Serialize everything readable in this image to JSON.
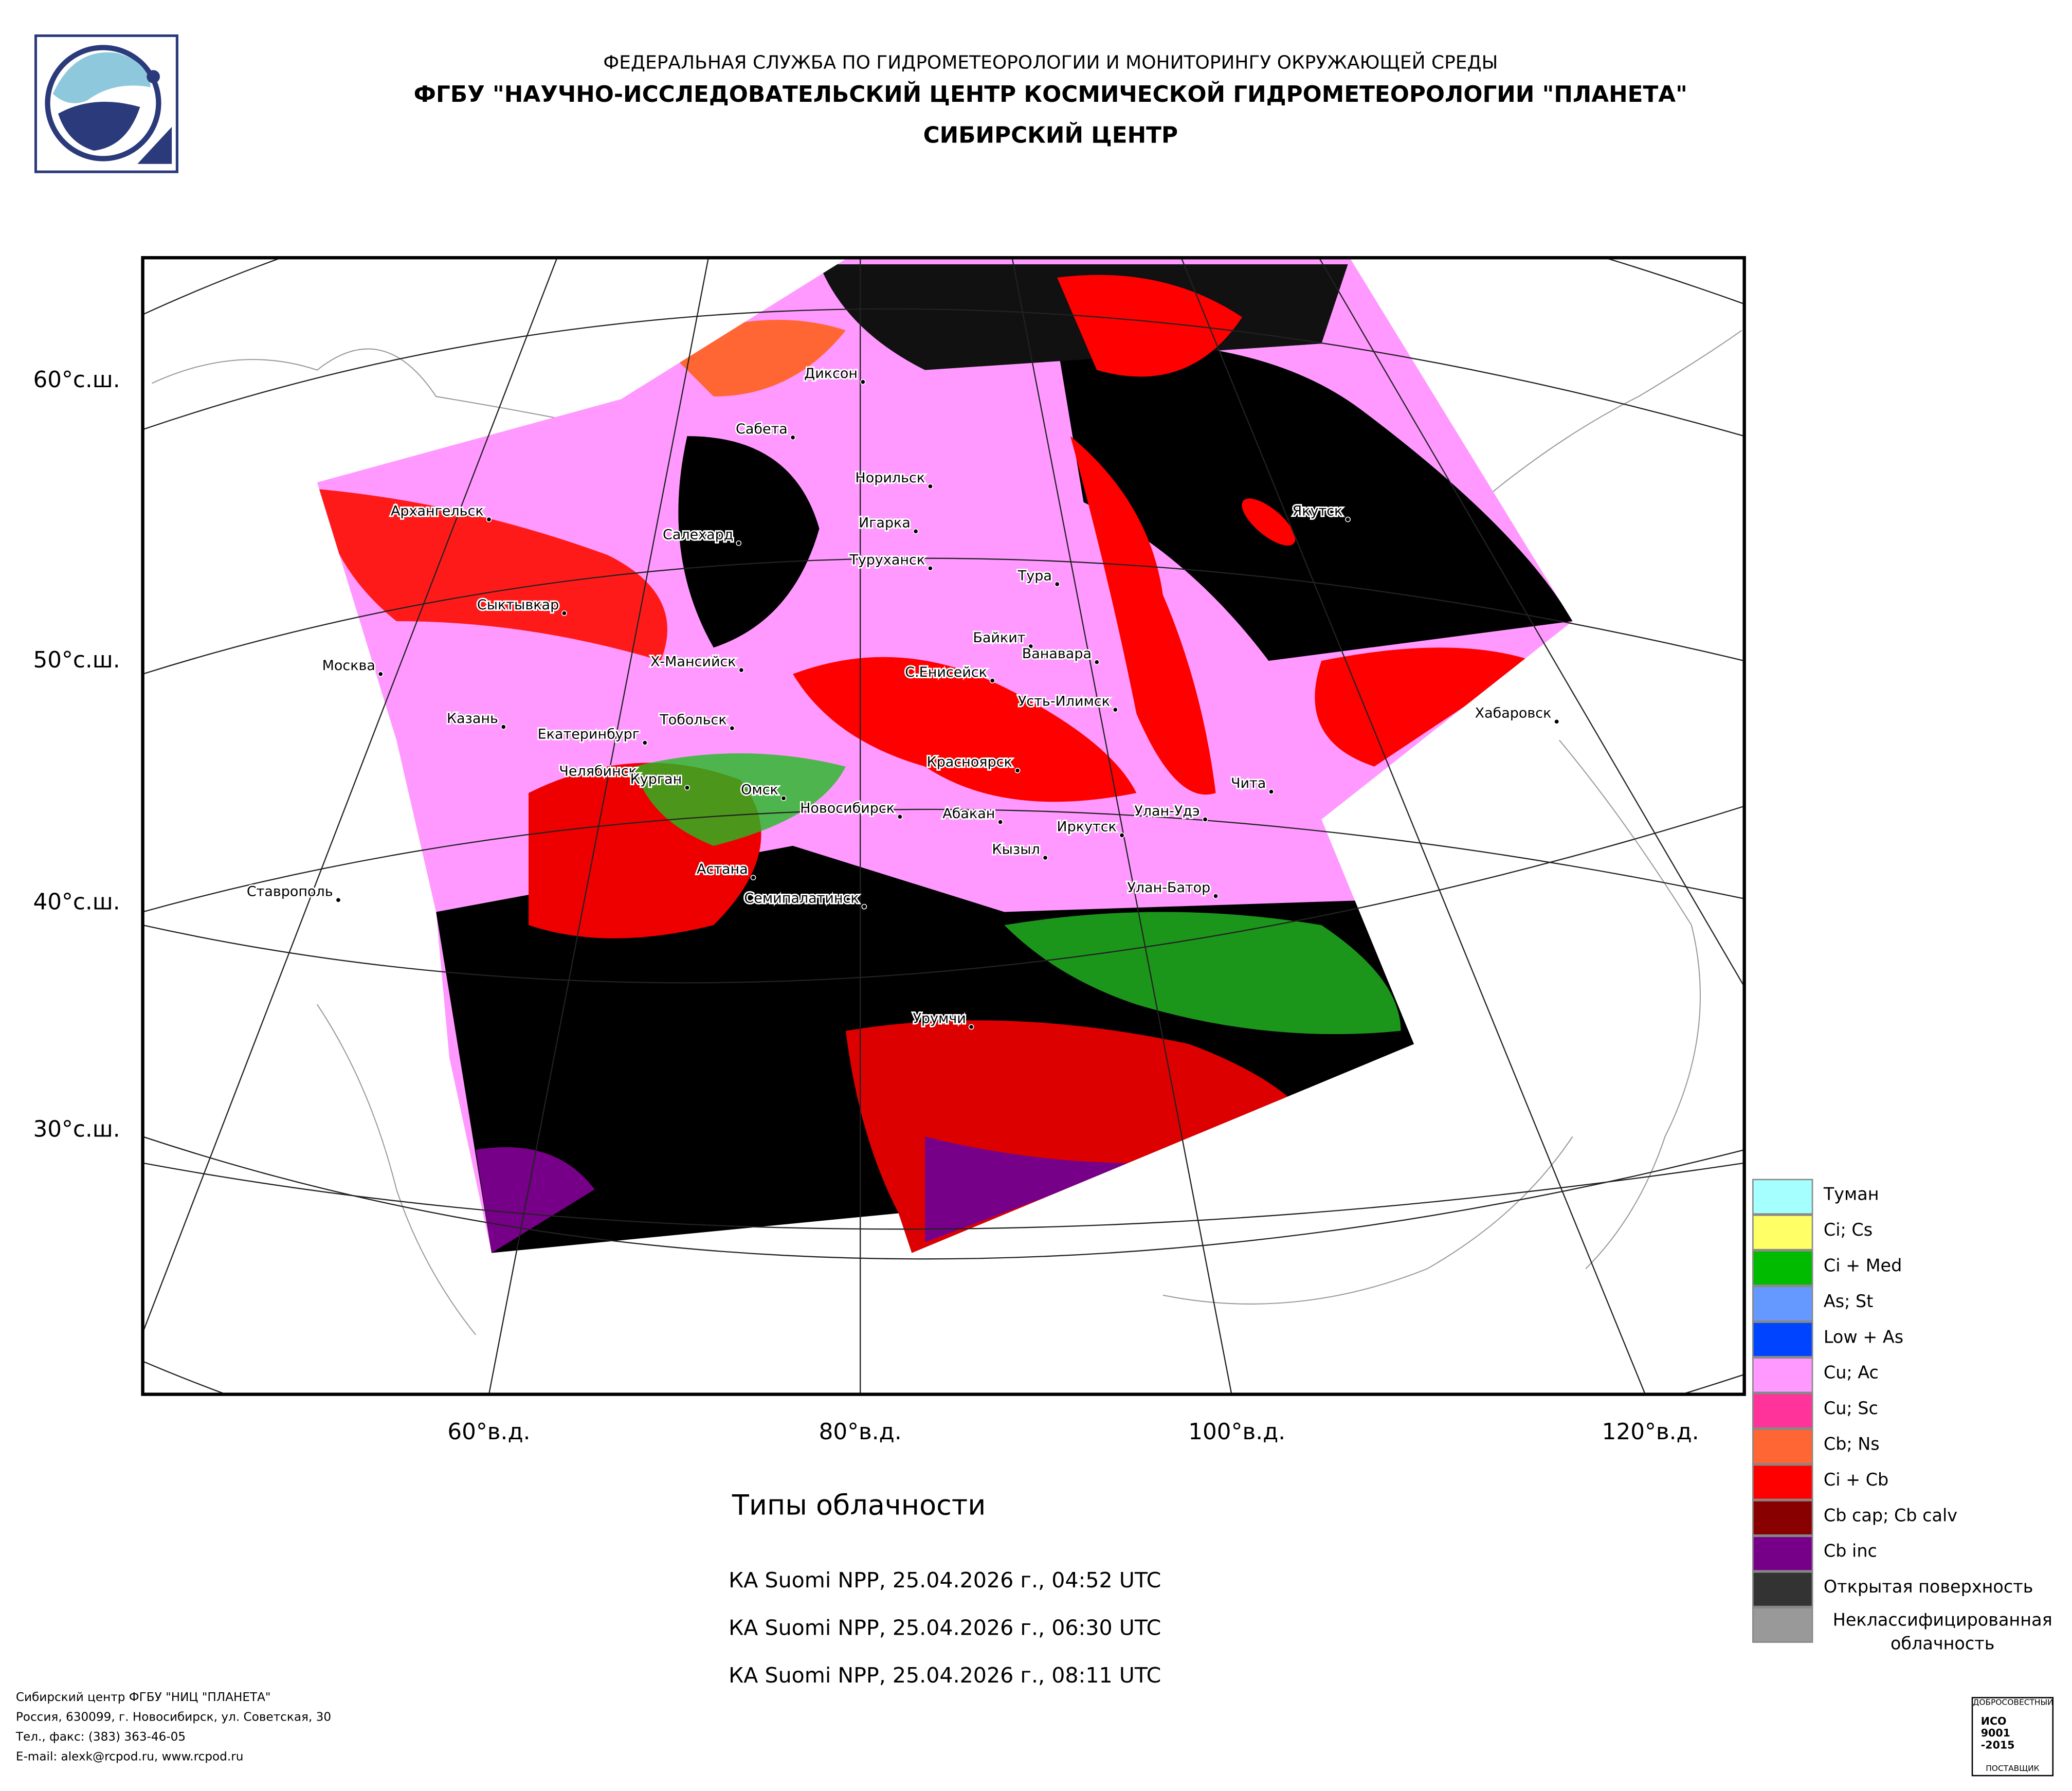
{
  "header": {
    "agency": "ФЕДЕРАЛЬНАЯ СЛУЖБА ПО ГИДРОМЕТЕОРОЛОГИИ И МОНИТОРИНГУ ОКРУЖАЮЩЕЙ СРЕДЫ",
    "center": "ФГБУ \"НАУЧНО-ИССЛЕДОВАТЕЛЬСКИЙ ЦЕНТР КОСМИЧЕСКОЙ ГИДРОМЕТЕОРОЛОГИИ \"ПЛАНЕТА\"",
    "division": "СИБИРСКИЙ ЦЕНТР"
  },
  "map": {
    "lat_labels": [
      "60°с.ш.",
      "50°с.ш.",
      "40°с.ш.",
      "30°с.ш."
    ],
    "lon_labels": [
      "60°в.д.",
      "80°в.д.",
      "100°в.д.",
      "120°в.д."
    ],
    "cities": [
      "Диксон",
      "Сабета",
      "Норильск",
      "Архангельск",
      "Игарка",
      "Салехард",
      "Туруханск",
      "Тура",
      "Якутск",
      "Сыктывкар",
      "Байкит",
      "Ванавара",
      "Х-Мансийск",
      "С.Енисейск",
      "Москва",
      "Усть-Илимск",
      "Хабаровск",
      "Казань",
      "Тобольск",
      "Екатеринбург",
      "Красноярск",
      "Челябинск",
      "Чита",
      "Курган",
      "Омск",
      "Новосибирск",
      "Улан-Удэ",
      "Абакан",
      "Иркутск",
      "Кызыл",
      "Астана",
      "Ставрополь",
      "Улан-Батор",
      "Семипалатинск",
      "Урумчи"
    ]
  },
  "title": "Типы облачности",
  "passes": [
    "КА Suomi NPP, 25.04.2026 г., 04:52 UTC",
    "КА Suomi NPP, 25.04.2026 г., 06:30 UTC",
    "КА Suomi NPP, 25.04.2026 г., 08:11 UTC"
  ],
  "legend": [
    {
      "label": "Туман",
      "color": "#a6ffff"
    },
    {
      "label": "Ci; Cs",
      "color": "#ffff66"
    },
    {
      "label": "Ci + Med",
      "color": "#00bb00"
    },
    {
      "label": "As; St",
      "color": "#6699ff"
    },
    {
      "label": "Low + As",
      "color": "#0044ff"
    },
    {
      "label": "Cu; Ac",
      "color": "#ff99ff"
    },
    {
      "label": "Cu; Sc",
      "color": "#ff3399"
    },
    {
      "label": "Cb; Ns",
      "color": "#ff6633"
    },
    {
      "label": "Ci + Cb",
      "color": "#ff0000"
    },
    {
      "label": "Cb cap; Cb calv",
      "color": "#880000"
    },
    {
      "label": "Cb inc",
      "color": "#770088"
    },
    {
      "label": "Открытая поверхность",
      "color": "#333333"
    },
    {
      "label": "Неклассифицированная облачность",
      "color": "#999999"
    }
  ],
  "footer": [
    "Сибирский центр ФГБУ \"НИЦ \"ПЛАНЕТА\"",
    "Россия, 630099, г. Новосибирск, ул. Советская, 30",
    "Тел., факс: (383) 363-46-05",
    "E-mail: alexk@rcpod.ru, www.rcpod.ru"
  ],
  "certificate": {
    "top": "ДОБРОСОВЕСТНЫЙ",
    "standard": "ИСО 9001 -2015",
    "bottom": "ПОСТАВЩИК"
  }
}
